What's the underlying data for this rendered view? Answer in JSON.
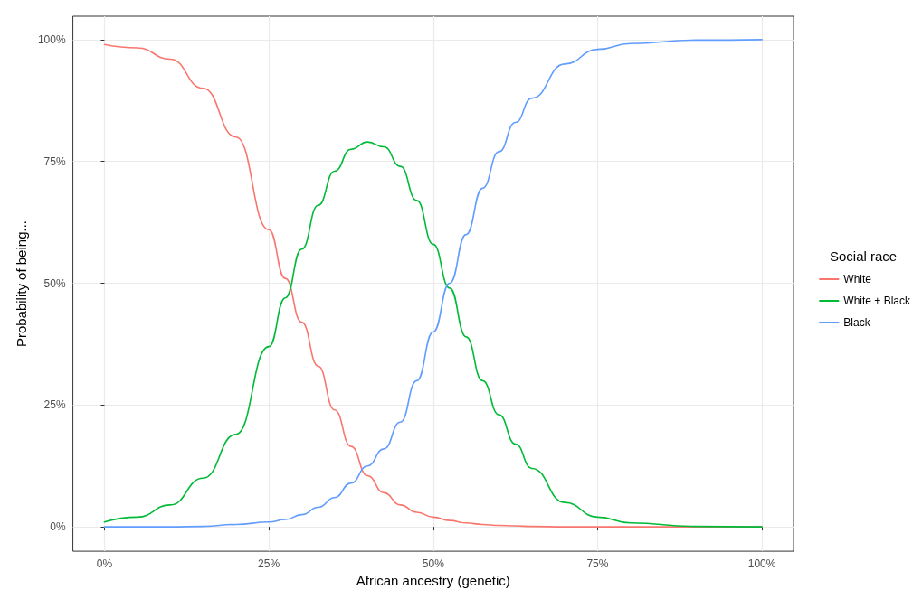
{
  "chart_data": {
    "type": "line",
    "xlabel": "African ancestry (genetic)",
    "ylabel": "Probability of being...",
    "legend_title": "Social race",
    "legend": "right",
    "grid": true,
    "marker": "none",
    "line_style": "solid",
    "x": [
      0,
      5,
      10,
      15,
      20,
      25,
      27.5,
      30,
      32.5,
      35,
      37.5,
      40,
      42.5,
      45,
      47.5,
      50,
      52.5,
      55,
      57.5,
      60,
      62.5,
      65,
      70,
      75,
      80,
      90,
      100
    ],
    "xlim": [
      -4.8,
      104.8
    ],
    "ylim": [
      -5,
      104.8
    ],
    "xticks": [
      {
        "value": 0,
        "label": "0%"
      },
      {
        "value": 25,
        "label": "25%"
      },
      {
        "value": 50,
        "label": "50%"
      },
      {
        "value": 75,
        "label": "75%"
      },
      {
        "value": 100,
        "label": "100%"
      }
    ],
    "yticks": [
      {
        "value": 0,
        "label": "0%"
      },
      {
        "value": 25,
        "label": "25%"
      },
      {
        "value": 50,
        "label": "50%"
      },
      {
        "value": 75,
        "label": "75%"
      },
      {
        "value": 100,
        "label": "100%"
      }
    ],
    "series": [
      {
        "name": "White",
        "color": "#f8766d",
        "values": [
          99,
          98.3,
          96,
          90,
          80,
          61,
          51,
          42,
          33,
          24,
          16.5,
          10.5,
          7,
          4.5,
          3,
          2,
          1.3,
          0.8,
          0.5,
          0.3,
          0.2,
          0.1,
          0,
          0,
          0,
          0,
          0
        ]
      },
      {
        "name": "White + Black",
        "color": "#00ba38",
        "values": [
          1,
          2,
          4.5,
          10,
          19,
          37,
          47,
          57,
          66,
          73,
          77.5,
          79,
          78,
          74,
          67,
          58,
          49,
          39,
          30,
          23,
          17,
          12,
          5,
          2,
          0.8,
          0.1,
          0
        ]
      },
      {
        "name": "Black",
        "color": "#619cff",
        "values": [
          0,
          0,
          0,
          0.1,
          0.5,
          1,
          1.5,
          2.5,
          4,
          6,
          9,
          12.5,
          16,
          21.5,
          30,
          40,
          50,
          60,
          69.5,
          77,
          83,
          88,
          95,
          98,
          99.2,
          99.9,
          100
        ]
      }
    ]
  }
}
